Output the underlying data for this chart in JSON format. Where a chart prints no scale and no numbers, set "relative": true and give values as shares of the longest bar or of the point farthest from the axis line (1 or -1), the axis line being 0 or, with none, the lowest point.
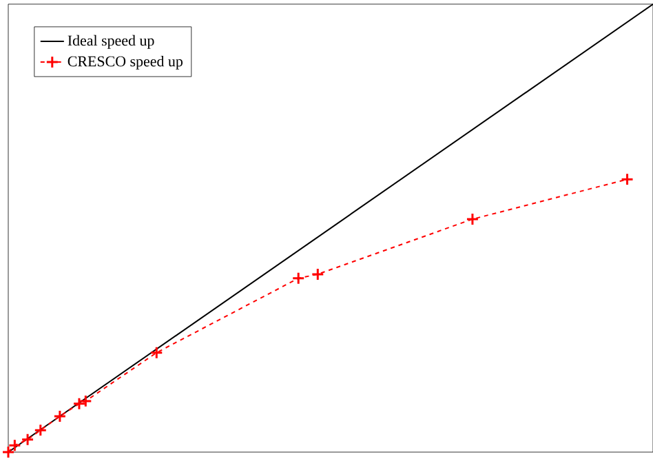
{
  "chart_data": {
    "type": "line",
    "relative": true,
    "legend": "top left",
    "categories": [
      null,
      null,
      null,
      null,
      null,
      null,
      null,
      null,
      null,
      null,
      null,
      null,
      null,
      null,
      null,
      null,
      null,
      null,
      null,
      null,
      null,
      null,
      null,
      null,
      null,
      null,
      null,
      null,
      null,
      null,
      null,
      null,
      null,
      null,
      null,
      null,
      null,
      null,
      null,
      null,
      null,
      null,
      null,
      null,
      null,
      null,
      null,
      null,
      null,
      null,
      null,
      null,
      null,
      null,
      null,
      null,
      null,
      null,
      null,
      null,
      null,
      null,
      null,
      null,
      null,
      null,
      null,
      null,
      null,
      null,
      null,
      null,
      null,
      null,
      null,
      null,
      null,
      null,
      null,
      null,
      null,
      null,
      null,
      null,
      null,
      null,
      null,
      null,
      null,
      null,
      null,
      null,
      null,
      null,
      null,
      null,
      null,
      null,
      null,
      null,
      null
    ],
    "series": [
      {
        "name": "Ideal speed up",
        "color": "#000000",
        "marker": "none",
        "line_style": "solid",
        "values": [
          0,
          null,
          null,
          null,
          null,
          null,
          null,
          null,
          null,
          null,
          null,
          null,
          null,
          null,
          null,
          null,
          null,
          null,
          null,
          null,
          null,
          null,
          null,
          null,
          null,
          null,
          null,
          null,
          null,
          null,
          null,
          null,
          null,
          null,
          null,
          null,
          null,
          null,
          null,
          null,
          null,
          null,
          null,
          null,
          null,
          null,
          null,
          null,
          null,
          null,
          null,
          null,
          null,
          null,
          null,
          null,
          null,
          null,
          null,
          null,
          null,
          null,
          null,
          null,
          null,
          null,
          null,
          null,
          null,
          null,
          null,
          null,
          null,
          null,
          null,
          null,
          null,
          null,
          null,
          null,
          null,
          null,
          null,
          null,
          null,
          null,
          null,
          null,
          null,
          null,
          null,
          null,
          null,
          null,
          null,
          null,
          null,
          null,
          null,
          null,
          1
        ]
      },
      {
        "name": "CRESCO speed up",
        "color": "#ff0000",
        "marker": "cross",
        "line_style": "dashed",
        "values": [
          0,
          0.015,
          null,
          0.028,
          null,
          0.049,
          null,
          null,
          0.08,
          null,
          null,
          0.108,
          0.114,
          null,
          null,
          null,
          null,
          null,
          null,
          null,
          null,
          null,
          null,
          0.222,
          null,
          null,
          null,
          null,
          null,
          null,
          null,
          null,
          null,
          null,
          null,
          null,
          null,
          null,
          null,
          null,
          null,
          null,
          null,
          null,
          null,
          0.388,
          null,
          null,
          0.397,
          null,
          null,
          null,
          null,
          null,
          null,
          null,
          null,
          null,
          null,
          null,
          null,
          null,
          null,
          null,
          null,
          null,
          null,
          null,
          null,
          null,
          null,
          null,
          0.52,
          null,
          null,
          null,
          null,
          null,
          null,
          null,
          null,
          null,
          null,
          null,
          null,
          null,
          null,
          null,
          null,
          null,
          null,
          null,
          null,
          null,
          null,
          null,
          0.609,
          null,
          null,
          null,
          null
        ]
      }
    ]
  }
}
